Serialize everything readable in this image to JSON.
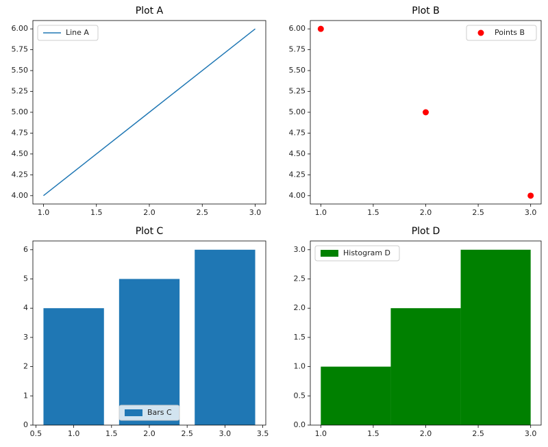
{
  "chart_data": [
    {
      "type": "line",
      "title": "Plot A",
      "x": [
        1,
        2,
        3
      ],
      "series": [
        {
          "name": "Line A",
          "color": "#1f77b4",
          "values": [
            4,
            5,
            6
          ]
        }
      ],
      "xlim": [
        0.9,
        3.1
      ],
      "ylim": [
        3.9,
        6.1
      ],
      "xticks": [
        {
          "value": 1,
          "label": "1.0"
        },
        {
          "value": 1.5,
          "label": "1.5"
        },
        {
          "value": 2,
          "label": "2.0"
        },
        {
          "value": 2.5,
          "label": "2.5"
        },
        {
          "value": 3,
          "label": "3.0"
        }
      ],
      "yticks": [
        {
          "value": 4,
          "label": "4.00"
        },
        {
          "value": 4.25,
          "label": "4.25"
        },
        {
          "value": 4.5,
          "label": "4.50"
        },
        {
          "value": 4.75,
          "label": "4.75"
        },
        {
          "value": 5,
          "label": "5.00"
        },
        {
          "value": 5.25,
          "label": "5.25"
        },
        {
          "value": 5.5,
          "label": "5.50"
        },
        {
          "value": 5.75,
          "label": "5.75"
        },
        {
          "value": 6,
          "label": "6.00"
        }
      ],
      "legend": "upper left"
    },
    {
      "type": "scatter",
      "title": "Plot B",
      "x": [
        1,
        2,
        3
      ],
      "series": [
        {
          "name": "Points B",
          "color": "#ff0000",
          "values": [
            6,
            5,
            4
          ]
        }
      ],
      "xlim": [
        0.9,
        3.1
      ],
      "ylim": [
        3.9,
        6.1
      ],
      "xticks": [
        {
          "value": 1,
          "label": "1.0"
        },
        {
          "value": 1.5,
          "label": "1.5"
        },
        {
          "value": 2,
          "label": "2.0"
        },
        {
          "value": 2.5,
          "label": "2.5"
        },
        {
          "value": 3,
          "label": "3.0"
        }
      ],
      "yticks": [
        {
          "value": 4,
          "label": "4.00"
        },
        {
          "value": 4.25,
          "label": "4.25"
        },
        {
          "value": 4.5,
          "label": "4.50"
        },
        {
          "value": 4.75,
          "label": "4.75"
        },
        {
          "value": 5,
          "label": "5.00"
        },
        {
          "value": 5.25,
          "label": "5.25"
        },
        {
          "value": 5.5,
          "label": "5.50"
        },
        {
          "value": 5.75,
          "label": "5.75"
        },
        {
          "value": 6,
          "label": "6.00"
        }
      ],
      "legend": "upper right"
    },
    {
      "type": "bar",
      "title": "Plot C",
      "x": [
        1,
        2,
        3
      ],
      "series": [
        {
          "name": "Bars C",
          "color": "#1f77b4",
          "values": [
            4,
            5,
            6
          ]
        }
      ],
      "xlim": [
        0.46,
        3.54
      ],
      "ylim": [
        0,
        6.3
      ],
      "xticks": [
        0.5,
        {
          "value": 1,
          "label": "1.0"
        },
        1.5,
        {
          "value": 2,
          "label": "2.0"
        },
        2.5,
        {
          "value": 3,
          "label": "3.0"
        },
        3.5
      ],
      "yticks": [
        0,
        1,
        2,
        3,
        4,
        5,
        6
      ],
      "legend": "lower center"
    },
    {
      "type": "histogram",
      "title": "Plot D",
      "bins": [
        1,
        1.6667,
        2.3333,
        3
      ],
      "series": [
        {
          "name": "Histogram D",
          "color": "#008000",
          "values": [
            1,
            2,
            3
          ]
        }
      ],
      "xlim": [
        0.9,
        3.1
      ],
      "ylim": [
        0,
        3.15
      ],
      "xticks": [
        {
          "value": 1,
          "label": "1.0"
        },
        {
          "value": 1.5,
          "label": "1.5"
        },
        {
          "value": 2,
          "label": "2.0"
        },
        {
          "value": 2.5,
          "label": "2.5"
        },
        {
          "value": 3,
          "label": "3.0"
        }
      ],
      "yticks": [
        {
          "value": 0,
          "label": "0.0"
        },
        {
          "value": 0.5,
          "label": "0.5"
        },
        {
          "value": 1,
          "label": "1.0"
        },
        {
          "value": 1.5,
          "label": "1.5"
        },
        {
          "value": 2,
          "label": "2.0"
        },
        {
          "value": 2.5,
          "label": "2.5"
        },
        {
          "value": 3,
          "label": "3.0"
        }
      ],
      "legend": "upper left"
    }
  ]
}
